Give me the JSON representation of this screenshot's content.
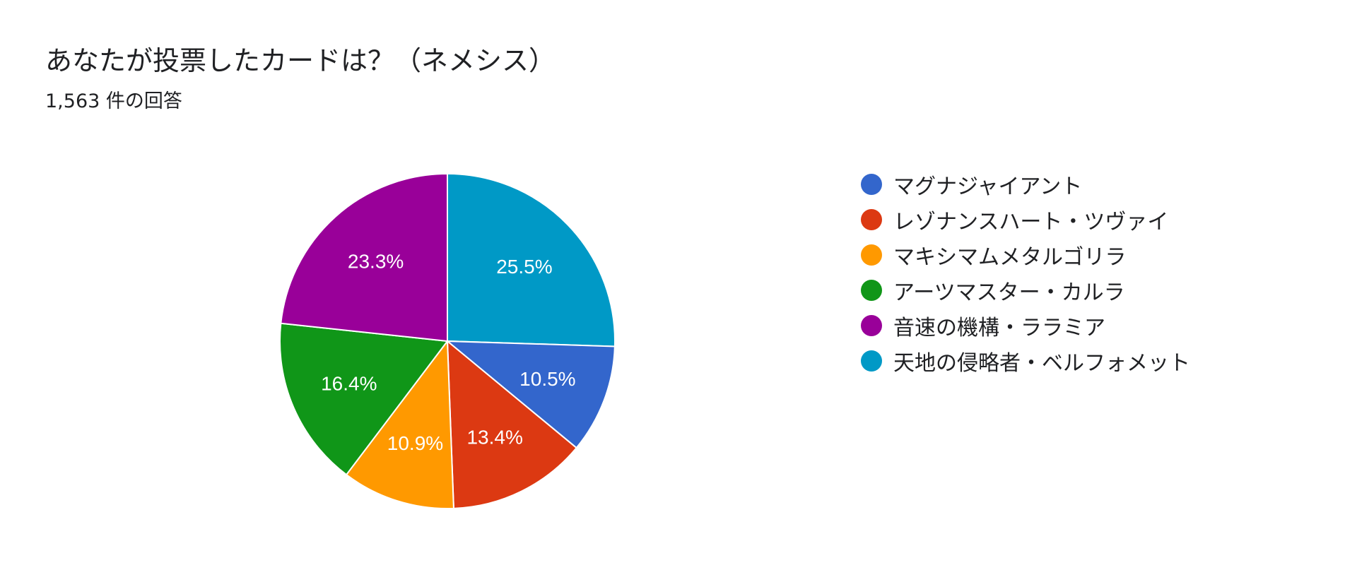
{
  "title": "あなたが投票したカードは？（ネメシス）",
  "subtitle": "1,563 件の回答",
  "chart_data": {
    "type": "pie",
    "title": "あなたが投票したカードは？（ネメシス）",
    "subtitle": "1,563 件の回答",
    "start": "12 o'clock",
    "direction": "clockwise",
    "legend_position": "right",
    "categories": [
      "天地の侵略者・ベルフォメット",
      "マグナジャイアント",
      "レゾナンスハート・ツヴァイ",
      "マキシマムメタルゴリラ",
      "アーツマスター・カルラ",
      "音速の機構・ララミア"
    ],
    "values": [
      25.5,
      10.5,
      13.4,
      10.9,
      16.4,
      23.3
    ],
    "labels": [
      "25.5%",
      "10.5%",
      "13.4%",
      "10.9%",
      "16.4%",
      "23.3%"
    ],
    "colors": [
      "#0099c6",
      "#3366cc",
      "#dc3912",
      "#ff9900",
      "#109618",
      "#990099"
    ]
  },
  "legend": [
    {
      "label": "マグナジャイアント",
      "color": "#3366cc"
    },
    {
      "label": "レゾナンスハート・ツヴァイ",
      "color": "#dc3912"
    },
    {
      "label": "マキシマムメタルゴリラ",
      "color": "#ff9900"
    },
    {
      "label": "アーツマスター・カルラ",
      "color": "#109618"
    },
    {
      "label": "音速の機構・ララミア",
      "color": "#990099"
    },
    {
      "label": "天地の侵略者・ベルフォメット",
      "color": "#0099c6"
    }
  ]
}
